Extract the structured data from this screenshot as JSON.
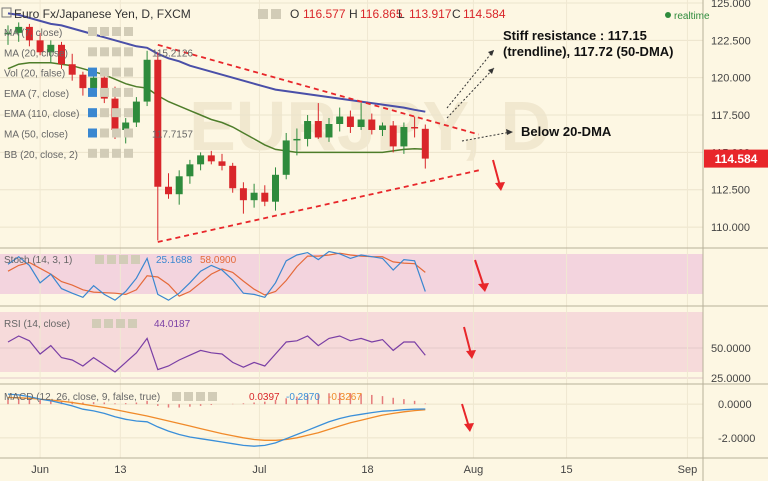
{
  "header": {
    "symbol": "Euro Fx/Japanese Yen, D, FXCM",
    "open_label": "O",
    "open": "116.577",
    "high_label": "H",
    "high": "116.865",
    "low_label": "L",
    "low": "113.917",
    "close_label": "C",
    "close": "114.584",
    "realtime": "realtime"
  },
  "price_tag": "114.584",
  "watermark": "EURJPY, D",
  "indicators": [
    {
      "label": "MA (7, close)",
      "value": ""
    },
    {
      "label": "MA (20, close)",
      "value": "115.2126"
    },
    {
      "label": "Vol (20, false)",
      "value": ""
    },
    {
      "label": "EMA (7, close)",
      "value": ""
    },
    {
      "label": "EMA (110, close)",
      "value": ""
    },
    {
      "label": "MA (50, close)",
      "value": "117.7157"
    },
    {
      "label": "BB (20, close, 2)",
      "value": ""
    }
  ],
  "panels": {
    "stoch": {
      "label": "Stoch (14, 3, 1)",
      "k": "25.1688",
      "d": "58.0900"
    },
    "rsi": {
      "label": "RSI (14, close)",
      "value": "44.0187"
    },
    "macd": {
      "label": "MACD (12, 26, close, 9, false, true)",
      "hist": "0.0397",
      "macd": "-0.2870",
      "signal": "-0.3267"
    }
  },
  "annotations": {
    "resistance_line1": "Stiff resistance : 117.15",
    "resistance_line2": "(trendline), 117.72 (50-DMA)",
    "below": "Below 20-DMA"
  },
  "colors": {
    "bull": "#2e8b3c",
    "bear": "#d9262a",
    "ma20": "#4e7d2a",
    "ma50": "#4a4fa8",
    "trend": "#e8262a",
    "stoch_k": "#3a87d0",
    "stoch_d": "#e56a3a",
    "rsi": "#7a3fa5",
    "macd": "#3a8fd9",
    "signal": "#f08a2a",
    "tag": "#e8262a"
  },
  "chart_data": [
    {
      "type": "candlestick",
      "title": "Euro Fx/Japanese Yen, D, FXCM",
      "x_ticks": [
        "Jun",
        "13",
        "Jul",
        "18",
        "Aug",
        "15",
        "Sep"
      ],
      "y_ticks": [
        "125.000",
        "122.500",
        "120.000",
        "117.500",
        "115.000",
        "112.500",
        "110.000"
      ],
      "ylim": [
        108.6,
        125.2
      ],
      "candles": [
        {
          "o": 122.9,
          "h": 123.5,
          "l": 122.2,
          "c": 123.0
        },
        {
          "o": 123.0,
          "h": 123.7,
          "l": 122.4,
          "c": 123.4
        },
        {
          "o": 123.4,
          "h": 123.6,
          "l": 122.1,
          "c": 122.5
        },
        {
          "o": 122.5,
          "h": 123.0,
          "l": 121.5,
          "c": 121.7
        },
        {
          "o": 121.7,
          "h": 122.5,
          "l": 121.0,
          "c": 122.2
        },
        {
          "o": 122.2,
          "h": 122.4,
          "l": 120.6,
          "c": 120.9
        },
        {
          "o": 120.9,
          "h": 121.6,
          "l": 119.8,
          "c": 120.2
        },
        {
          "o": 120.2,
          "h": 120.4,
          "l": 118.8,
          "c": 119.3
        },
        {
          "o": 119.3,
          "h": 120.5,
          "l": 118.9,
          "c": 120.0
        },
        {
          "o": 120.0,
          "h": 120.2,
          "l": 118.3,
          "c": 118.6
        },
        {
          "o": 118.6,
          "h": 119.4,
          "l": 115.9,
          "c": 116.5
        },
        {
          "o": 116.5,
          "h": 117.3,
          "l": 115.6,
          "c": 117.0
        },
        {
          "o": 117.0,
          "h": 118.7,
          "l": 116.7,
          "c": 118.4
        },
        {
          "o": 118.4,
          "h": 121.8,
          "l": 118.1,
          "c": 121.2
        },
        {
          "o": 121.2,
          "h": 121.7,
          "l": 109.1,
          "c": 112.7
        },
        {
          "o": 112.7,
          "h": 113.6,
          "l": 111.9,
          "c": 112.2
        },
        {
          "o": 112.2,
          "h": 113.8,
          "l": 111.5,
          "c": 113.4
        },
        {
          "o": 113.4,
          "h": 114.5,
          "l": 112.9,
          "c": 114.2
        },
        {
          "o": 114.2,
          "h": 115.0,
          "l": 113.8,
          "c": 114.8
        },
        {
          "o": 114.8,
          "h": 115.1,
          "l": 114.2,
          "c": 114.4
        },
        {
          "o": 114.4,
          "h": 114.9,
          "l": 113.8,
          "c": 114.1
        },
        {
          "o": 114.1,
          "h": 114.3,
          "l": 112.3,
          "c": 112.6
        },
        {
          "o": 112.6,
          "h": 113.0,
          "l": 110.9,
          "c": 111.8
        },
        {
          "o": 111.8,
          "h": 112.9,
          "l": 111.3,
          "c": 112.3
        },
        {
          "o": 112.3,
          "h": 112.8,
          "l": 111.4,
          "c": 111.7
        },
        {
          "o": 111.7,
          "h": 114.0,
          "l": 111.1,
          "c": 113.5
        },
        {
          "o": 113.5,
          "h": 116.3,
          "l": 113.2,
          "c": 115.8
        },
        {
          "o": 115.8,
          "h": 116.6,
          "l": 114.8,
          "c": 115.9
        },
        {
          "o": 115.9,
          "h": 117.5,
          "l": 115.4,
          "c": 117.1
        },
        {
          "o": 117.1,
          "h": 118.3,
          "l": 115.9,
          "c": 116.0
        },
        {
          "o": 116.0,
          "h": 117.3,
          "l": 115.7,
          "c": 116.9
        },
        {
          "o": 116.9,
          "h": 118.0,
          "l": 116.4,
          "c": 117.4
        },
        {
          "o": 117.4,
          "h": 117.8,
          "l": 116.3,
          "c": 116.7
        },
        {
          "o": 116.7,
          "h": 118.3,
          "l": 116.5,
          "c": 117.2
        },
        {
          "o": 117.2,
          "h": 117.6,
          "l": 116.2,
          "c": 116.5
        },
        {
          "o": 116.5,
          "h": 117.0,
          "l": 116.1,
          "c": 116.8
        },
        {
          "o": 116.8,
          "h": 117.1,
          "l": 115.0,
          "c": 115.4
        },
        {
          "o": 115.4,
          "h": 117.0,
          "l": 114.9,
          "c": 116.7
        },
        {
          "o": 116.7,
          "h": 117.4,
          "l": 116.0,
          "c": 116.6
        },
        {
          "o": 116.577,
          "h": 116.865,
          "l": 113.917,
          "c": 114.584
        }
      ],
      "ma20": [
        120.6,
        120.9,
        121.0,
        121.0,
        121.0,
        120.9,
        120.8,
        120.6,
        120.4,
        120.2,
        119.9,
        119.6,
        119.4,
        119.3,
        118.8,
        118.4,
        118.1,
        117.8,
        117.5,
        117.2,
        117.0,
        116.7,
        116.3,
        115.9,
        115.5,
        115.2,
        115.1,
        115.0,
        115.0,
        115.0,
        115.0,
        115.0,
        115.0,
        115.0,
        115.0,
        115.0,
        115.1,
        115.2,
        115.25,
        115.21
      ],
      "ma50": [
        124.3,
        124.2,
        124.0,
        123.8,
        123.6,
        123.5,
        123.3,
        123.1,
        122.9,
        122.7,
        122.5,
        122.3,
        122.1,
        122.0,
        121.6,
        121.3,
        121.1,
        120.8,
        120.6,
        120.4,
        120.2,
        120.0,
        119.8,
        119.6,
        119.4,
        119.2,
        119.1,
        119.0,
        118.9,
        118.8,
        118.7,
        118.6,
        118.5,
        118.4,
        118.3,
        118.2,
        118.1,
        118.0,
        117.85,
        117.72
      ],
      "trendlines": [
        {
          "kind": "resistance",
          "from": {
            "bar": 14,
            "value": 122.2
          },
          "to": {
            "bar": 44,
            "value": 116.2
          }
        },
        {
          "kind": "support",
          "from": {
            "bar": 14,
            "value": 109.0
          },
          "to": {
            "bar": 44,
            "value": 113.8
          }
        }
      ]
    },
    {
      "type": "line",
      "title": "Stoch (14, 3, 1)",
      "ylim": [
        0,
        100
      ],
      "series": [
        {
          "name": "%K",
          "values": [
            72,
            85,
            70,
            40,
            55,
            30,
            22,
            15,
            35,
            20,
            10,
            25,
            48,
            82,
            20,
            10,
            22,
            40,
            60,
            70,
            62,
            45,
            22,
            20,
            15,
            40,
            78,
            88,
            92,
            80,
            94,
            90,
            82,
            88,
            85,
            82,
            62,
            80,
            78,
            25
          ]
        },
        {
          "name": "%D",
          "values": [
            60,
            70,
            75,
            65,
            55,
            42,
            36,
            28,
            24,
            23,
            22,
            20,
            28,
            52,
            50,
            37,
            17,
            25,
            40,
            55,
            64,
            58,
            43,
            29,
            19,
            25,
            44,
            68,
            86,
            86,
            88,
            91,
            88,
            86,
            85,
            85,
            76,
            74,
            73,
            58
          ]
        }
      ]
    },
    {
      "type": "line",
      "title": "RSI (14, close)",
      "ylim": [
        20,
        85
      ],
      "y_ticks": [
        "50.0000",
        "25.0000"
      ],
      "series": [
        {
          "name": "RSI",
          "values": [
            55,
            60,
            56,
            45,
            52,
            42,
            40,
            35,
            42,
            36,
            30,
            38,
            46,
            58,
            32,
            35,
            40,
            44,
            48,
            46,
            45,
            38,
            34,
            38,
            35,
            45,
            55,
            56,
            60,
            52,
            58,
            60,
            56,
            58,
            55,
            57,
            48,
            55,
            55,
            44
          ]
        }
      ]
    },
    {
      "type": "line",
      "title": "MACD (12, 26, close, 9, false, true)",
      "ylim": [
        -3.2,
        1.2
      ],
      "y_ticks": [
        "0.0000",
        "-2.0000"
      ],
      "series": [
        {
          "name": "Histogram",
          "values": [
            0.3,
            0.32,
            0.3,
            0.25,
            0.24,
            0.2,
            0.15,
            0.1,
            0.12,
            0.1,
            0.05,
            0.06,
            0.1,
            0.2,
            -0.1,
            -0.2,
            -0.2,
            -0.15,
            -0.1,
            -0.05,
            0.0,
            0.02,
            0.05,
            0.1,
            0.15,
            0.25,
            0.35,
            0.45,
            0.55,
            0.6,
            0.65,
            0.68,
            0.66,
            0.62,
            0.55,
            0.48,
            0.38,
            0.3,
            0.2,
            0.04
          ]
        },
        {
          "name": "MACD",
          "values": [
            0.6,
            0.55,
            0.45,
            0.3,
            0.2,
            0.05,
            -0.1,
            -0.3,
            -0.4,
            -0.55,
            -0.75,
            -0.9,
            -1.0,
            -1.05,
            -1.35,
            -1.6,
            -1.8,
            -1.95,
            -2.05,
            -2.15,
            -2.25,
            -2.35,
            -2.45,
            -2.5,
            -2.45,
            -2.3,
            -2.05,
            -1.8,
            -1.55,
            -1.3,
            -1.05,
            -0.85,
            -0.7,
            -0.6,
            -0.5,
            -0.42,
            -0.38,
            -0.33,
            -0.3,
            -0.287
          ]
        },
        {
          "name": "Signal",
          "values": [
            0.4,
            0.38,
            0.35,
            0.3,
            0.25,
            0.18,
            0.1,
            0.0,
            -0.1,
            -0.2,
            -0.32,
            -0.45,
            -0.58,
            -0.7,
            -0.85,
            -1.0,
            -1.15,
            -1.3,
            -1.45,
            -1.6,
            -1.75,
            -1.88,
            -2.0,
            -2.1,
            -2.15,
            -2.15,
            -2.1,
            -2.0,
            -1.85,
            -1.7,
            -1.5,
            -1.3,
            -1.1,
            -0.95,
            -0.8,
            -0.65,
            -0.55,
            -0.45,
            -0.38,
            -0.327
          ]
        }
      ]
    }
  ]
}
